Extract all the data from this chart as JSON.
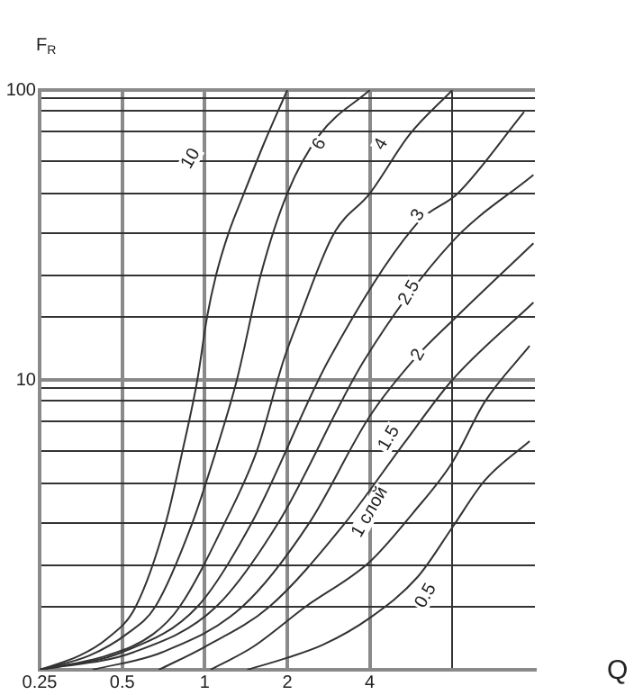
{
  "chart_data": {
    "type": "line",
    "xlabel": "Q",
    "ylabel": "F$_{R}$",
    "log": "xy",
    "grid": true,
    "legend": false,
    "marker": "none",
    "line_style": "solid",
    "xlim": [
      0.25,
      16
    ],
    "ylim": [
      1,
      100
    ],
    "xticks": [
      0.25,
      0.5,
      1,
      2,
      4,
      {
        "value": 8,
        "label": null
      }
    ],
    "yticks": [
      {
        "value": 1,
        "label": null
      },
      {
        "value": 1.65,
        "label": null
      },
      {
        "value": 2.3,
        "label": null
      },
      {
        "value": 3.2,
        "label": null
      },
      {
        "value": 4.4,
        "label": null
      },
      {
        "value": 5.7,
        "label": null
      },
      {
        "value": 7.2,
        "label": null
      },
      {
        "value": 8.5,
        "label": null
      },
      {
        "value": 9.4,
        "label": null
      },
      10,
      {
        "value": 16.5,
        "label": null
      },
      {
        "value": 23,
        "label": null
      },
      {
        "value": 32,
        "label": null
      },
      {
        "value": 44,
        "label": null
      },
      {
        "value": 57,
        "label": null
      },
      {
        "value": 72,
        "label": null
      },
      {
        "value": 85,
        "label": null
      },
      {
        "value": 94,
        "label": null
      },
      100
    ],
    "series": [
      {
        "color": "#333333",
        "x": [
          0.25,
          0.35,
          0.44,
          0.56,
          0.72,
          0.83,
          0.94,
          1.02,
          1.1,
          1.22,
          1.39,
          1.64,
          2
        ],
        "values": [
          1,
          1.12,
          1.28,
          1.65,
          3.2,
          5.7,
          10,
          16.5,
          23,
          32,
          44,
          65,
          100
        ]
      },
      {
        "color": "#333333",
        "x": [
          0.25,
          0.38,
          0.52,
          0.66,
          0.9,
          1.1,
          1.31,
          1.6,
          2,
          2.62,
          4
        ],
        "values": [
          1,
          1.12,
          1.33,
          1.65,
          3.2,
          5.7,
          10,
          23,
          44,
          70,
          100
        ]
      },
      {
        "color": "#333333",
        "x": [
          0.25,
          0.44,
          0.65,
          0.81,
          1.18,
          1.55,
          1.94,
          2.22,
          2.96,
          4,
          5.57,
          8
        ],
        "values": [
          1,
          1.12,
          1.33,
          1.65,
          3.2,
          5.7,
          11.7,
          16.5,
          32,
          44,
          70,
          100
        ]
      },
      {
        "color": "#333333",
        "x": [
          0.25,
          0.5,
          0.94,
          1.48,
          2.83,
          6,
          8.37,
          14.6
        ],
        "values": [
          1,
          1.15,
          1.65,
          3.2,
          11.7,
          35,
          44,
          84
        ]
      },
      {
        "color": "#333333",
        "x": [
          0.25,
          0.55,
          1.1,
          1.85,
          3.82,
          8,
          15.8
        ],
        "values": [
          1,
          1.15,
          1.65,
          3.2,
          11.7,
          30,
          51
        ]
      },
      {
        "color": "#333333",
        "x": [
          0.39,
          0.7,
          1.37,
          2.4,
          4,
          6,
          8,
          15.8
        ],
        "values": [
          1,
          1.15,
          1.65,
          3.2,
          7.5,
          12.2,
          16,
          29.6
        ]
      },
      {
        "color": "#333333",
        "x": [
          0.68,
          1,
          1.72,
          3.24,
          5.3,
          8,
          15.8
        ],
        "values": [
          1,
          1.2,
          1.65,
          3.2,
          6,
          10,
          18.5
        ]
      },
      {
        "color": "#333333",
        "x": [
          1.05,
          1.5,
          2.33,
          4,
          5.74,
          8,
          10.5,
          15.3
        ],
        "values": [
          1,
          1.2,
          1.65,
          2.36,
          3.47,
          5.2,
          8.4,
          13.1
        ]
      },
      {
        "color": "#333333",
        "x": [
          1.43,
          2,
          2.7,
          4,
          6,
          8,
          10.5,
          15.3
        ],
        "values": [
          1,
          1.1,
          1.22,
          1.51,
          2.1,
          3.1,
          4.5,
          6.15
        ]
      }
    ],
    "annotations": [
      {
        "text": "10",
        "x": 0.89,
        "y": 58
      },
      {
        "text": "6",
        "x": 2.62,
        "y": 65
      },
      {
        "text": "4",
        "x": 4.4,
        "y": 65
      },
      {
        "text": "3",
        "x": 6,
        "y": 37
      },
      {
        "text": "2.5",
        "x": 5.57,
        "y": 20
      },
      {
        "text": "2",
        "x": 6,
        "y": 12.2
      },
      {
        "text": "1.5",
        "x": 4.7,
        "y": 6.3
      },
      {
        "text": "1 слой",
        "x": 4,
        "y": 3.5
      },
      {
        "text": "0.5",
        "x": 6.4,
        "y": 1.8
      }
    ]
  }
}
